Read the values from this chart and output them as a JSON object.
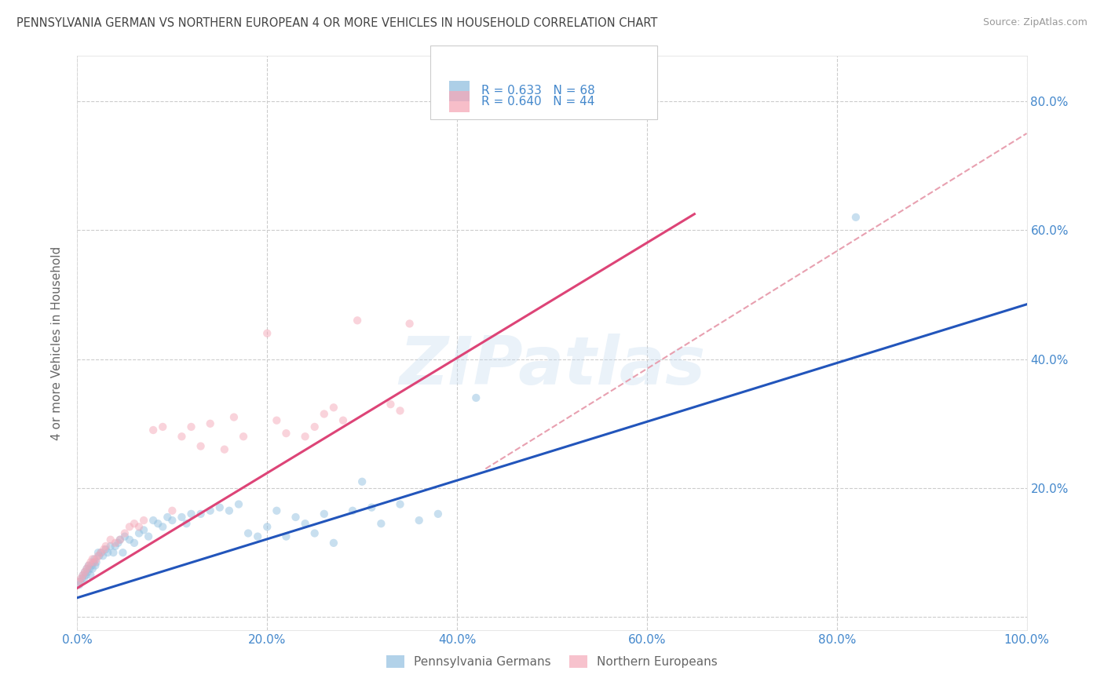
{
  "title": "PENNSYLVANIA GERMAN VS NORTHERN EUROPEAN 4 OR MORE VEHICLES IN HOUSEHOLD CORRELATION CHART",
  "source": "Source: ZipAtlas.com",
  "ylabel": "4 or more Vehicles in Household",
  "xlim": [
    0,
    1.0
  ],
  "ylim": [
    -0.02,
    0.87
  ],
  "xticks": [
    0.0,
    0.2,
    0.4,
    0.6,
    0.8,
    1.0
  ],
  "yticks": [
    0.0,
    0.2,
    0.4,
    0.6,
    0.8
  ],
  "xticklabels": [
    "0.0%",
    "20.0%",
    "40.0%",
    "60.0%",
    "80.0%",
    "100.0%"
  ],
  "right_yticklabels": [
    "",
    "20.0%",
    "40.0%",
    "60.0%",
    "80.0%"
  ],
  "legend_labels": [
    "Pennsylvania Germans",
    "Northern Europeans"
  ],
  "legend_R": [
    "0.633",
    "0.640"
  ],
  "legend_N": [
    "68",
    "44"
  ],
  "blue_color": "#92c0e0",
  "pink_color": "#f5a8b8",
  "blue_line_color": "#2255bb",
  "pink_line_color": "#dd4477",
  "dashed_line_color": "#e8a0b0",
  "title_color": "#444444",
  "axis_tick_color": "#4488cc",
  "dot_size": 55,
  "dot_alpha": 0.5,
  "blue_scatter_x": [
    0.002,
    0.003,
    0.005,
    0.006,
    0.007,
    0.008,
    0.009,
    0.01,
    0.011,
    0.012,
    0.013,
    0.014,
    0.015,
    0.016,
    0.017,
    0.018,
    0.019,
    0.02,
    0.022,
    0.023,
    0.025,
    0.027,
    0.03,
    0.032,
    0.035,
    0.038,
    0.04,
    0.043,
    0.045,
    0.048,
    0.05,
    0.055,
    0.06,
    0.065,
    0.07,
    0.075,
    0.08,
    0.085,
    0.09,
    0.095,
    0.1,
    0.11,
    0.115,
    0.12,
    0.13,
    0.14,
    0.15,
    0.16,
    0.17,
    0.18,
    0.19,
    0.2,
    0.21,
    0.22,
    0.23,
    0.24,
    0.25,
    0.26,
    0.27,
    0.29,
    0.3,
    0.31,
    0.32,
    0.34,
    0.36,
    0.38,
    0.42,
    0.82
  ],
  "blue_scatter_y": [
    0.05,
    0.055,
    0.06,
    0.065,
    0.06,
    0.07,
    0.065,
    0.075,
    0.07,
    0.08,
    0.075,
    0.065,
    0.08,
    0.075,
    0.085,
    0.09,
    0.08,
    0.085,
    0.1,
    0.095,
    0.1,
    0.095,
    0.105,
    0.1,
    0.11,
    0.1,
    0.11,
    0.115,
    0.12,
    0.1,
    0.125,
    0.12,
    0.115,
    0.13,
    0.135,
    0.125,
    0.15,
    0.145,
    0.14,
    0.155,
    0.15,
    0.155,
    0.145,
    0.16,
    0.16,
    0.165,
    0.17,
    0.165,
    0.175,
    0.13,
    0.125,
    0.14,
    0.165,
    0.125,
    0.155,
    0.145,
    0.13,
    0.16,
    0.115,
    0.165,
    0.21,
    0.17,
    0.145,
    0.175,
    0.15,
    0.16,
    0.34,
    0.62
  ],
  "pink_scatter_x": [
    0.002,
    0.004,
    0.006,
    0.008,
    0.01,
    0.012,
    0.014,
    0.016,
    0.018,
    0.02,
    0.022,
    0.025,
    0.028,
    0.03,
    0.035,
    0.04,
    0.045,
    0.05,
    0.055,
    0.06,
    0.065,
    0.07,
    0.08,
    0.09,
    0.1,
    0.11,
    0.12,
    0.13,
    0.14,
    0.155,
    0.165,
    0.175,
    0.2,
    0.21,
    0.22,
    0.24,
    0.25,
    0.26,
    0.27,
    0.28,
    0.295,
    0.33,
    0.34,
    0.35
  ],
  "pink_scatter_y": [
    0.055,
    0.06,
    0.065,
    0.07,
    0.075,
    0.08,
    0.085,
    0.09,
    0.085,
    0.09,
    0.095,
    0.1,
    0.105,
    0.11,
    0.12,
    0.115,
    0.12,
    0.13,
    0.14,
    0.145,
    0.14,
    0.15,
    0.29,
    0.295,
    0.165,
    0.28,
    0.295,
    0.265,
    0.3,
    0.26,
    0.31,
    0.28,
    0.44,
    0.305,
    0.285,
    0.28,
    0.295,
    0.315,
    0.325,
    0.305,
    0.46,
    0.33,
    0.32,
    0.455
  ],
  "blue_line_x": [
    0.0,
    1.0
  ],
  "blue_line_y": [
    0.03,
    0.485
  ],
  "pink_line_x": [
    0.0,
    0.65
  ],
  "pink_line_y": [
    0.045,
    0.625
  ],
  "dashed_line_x": [
    0.43,
    1.0
  ],
  "dashed_line_y": [
    0.23,
    0.75
  ],
  "watermark_text": "ZIPatlas",
  "background_color": "#ffffff",
  "grid_color": "#cccccc"
}
